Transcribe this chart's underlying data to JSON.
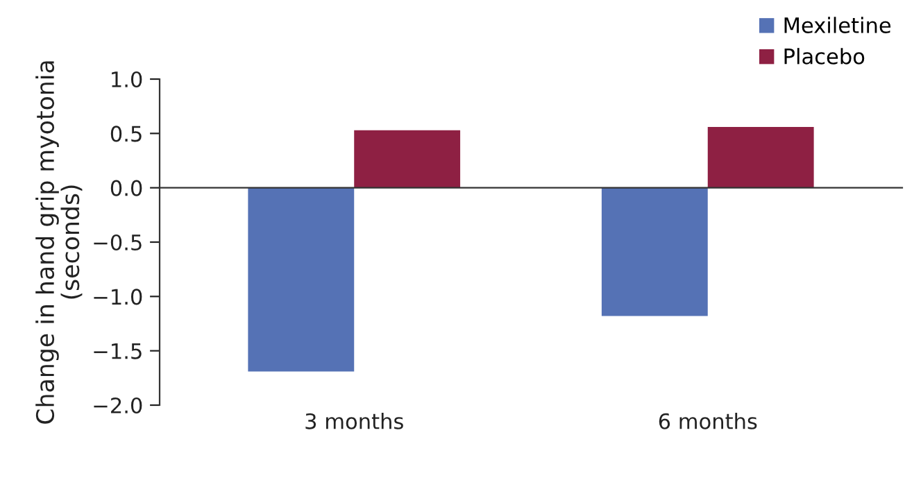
{
  "chart_data": {
    "type": "bar",
    "ylabel": "Change in hand grip myotonia\n(seconds)",
    "categories": [
      "3 months",
      "6 months"
    ],
    "series": [
      {
        "name": "Mexiletine",
        "color": "#5572b5",
        "values": [
          -1.69,
          -1.18
        ]
      },
      {
        "name": "Placebo",
        "color": "#8e2043",
        "values": [
          0.53,
          0.56
        ]
      }
    ],
    "ylim": [
      -2.0,
      1.0
    ],
    "yticks": [
      {
        "value": 1.0,
        "label": "1.0"
      },
      {
        "value": 0.5,
        "label": "0.5"
      },
      {
        "value": 0.0,
        "label": "0.0"
      },
      {
        "value": -0.5,
        "label": "−0.5"
      },
      {
        "value": -1.0,
        "label": "−1.0"
      },
      {
        "value": -1.5,
        "label": "−1.5"
      },
      {
        "value": -2.0,
        "label": "−2.0"
      }
    ],
    "legend": "top right"
  }
}
